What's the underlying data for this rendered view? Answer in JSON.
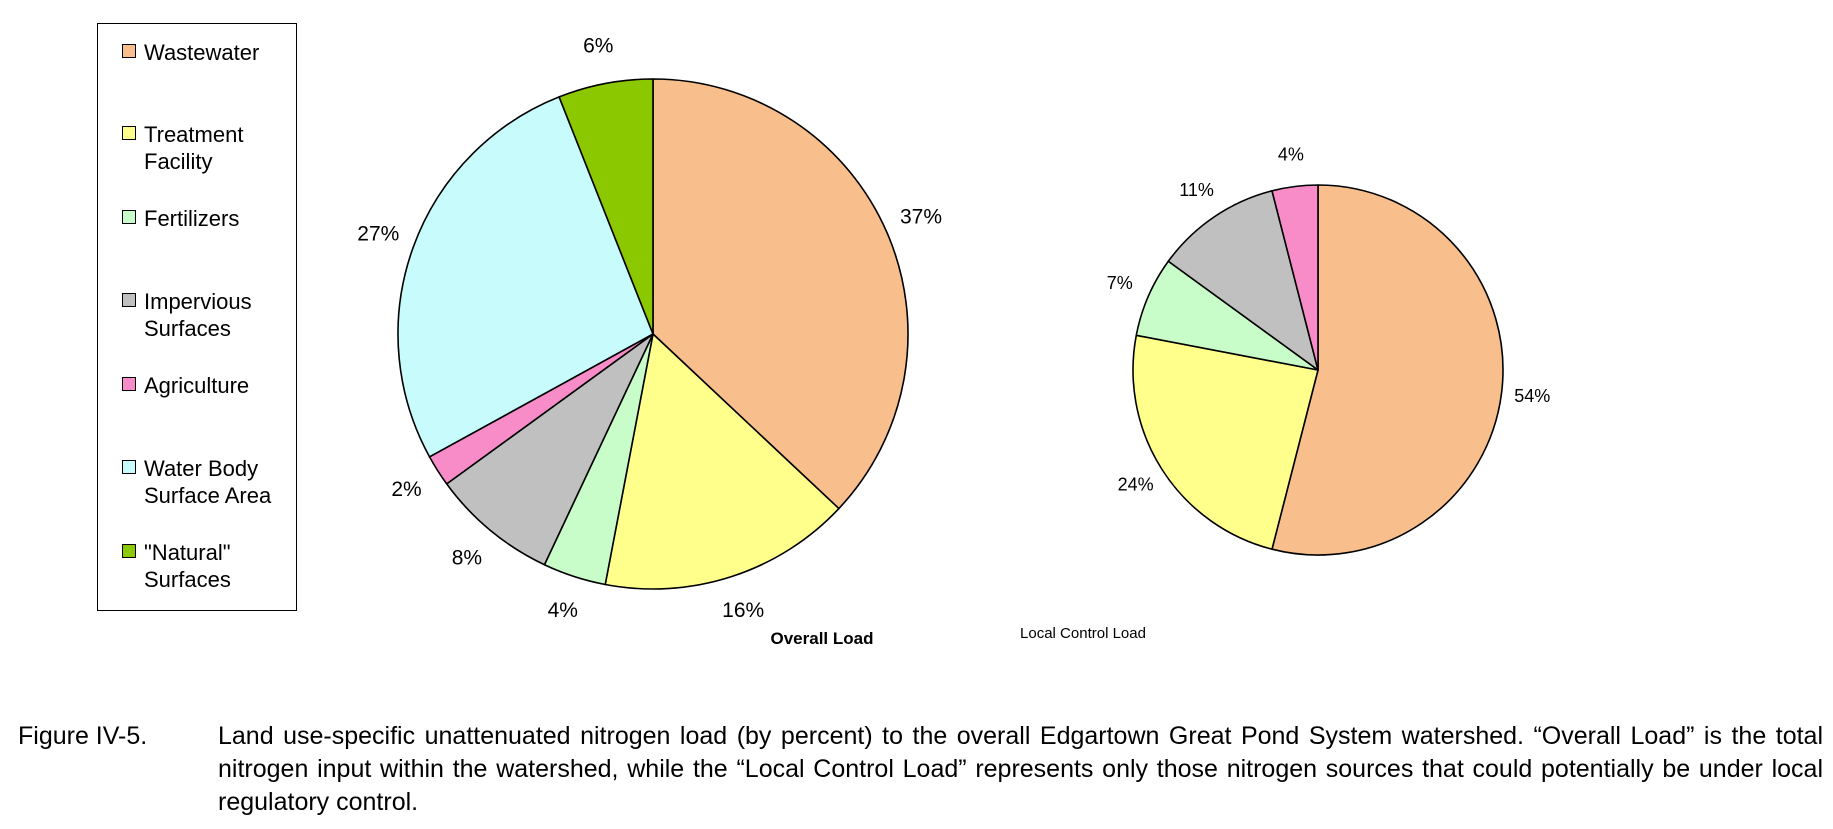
{
  "chart_data": [
    {
      "type": "pie",
      "title": "Overall Load",
      "categories": [
        "Wastewater",
        "Treatment Facility",
        "Fertilizers",
        "Impervious Surfaces",
        "Agriculture",
        "Water Body Surface Area",
        "\"Natural\" Surfaces"
      ],
      "values": [
        37,
        16,
        4,
        8,
        2,
        27,
        6
      ],
      "labels": [
        "37%",
        "16%",
        "4%",
        "8%",
        "2%",
        "27%",
        "6%"
      ],
      "colors": [
        "#F8BF8C",
        "#FFFF8C",
        "#C8FCC8",
        "#C0C0C0",
        "#F78CC8",
        "#C8FCFC",
        "#8CC800"
      ]
    },
    {
      "type": "pie",
      "title": "Local Control Load",
      "categories": [
        "Wastewater",
        "Treatment Facility",
        "Fertilizers",
        "Impervious Surfaces",
        "Agriculture"
      ],
      "values": [
        54,
        24,
        7,
        11,
        4
      ],
      "labels": [
        "54%",
        "24%",
        "7%",
        "11%",
        "4%"
      ],
      "colors": [
        "#F8BF8C",
        "#FFFF8C",
        "#C8FCC8",
        "#C0C0C0",
        "#F78CC8"
      ]
    }
  ],
  "legend": {
    "items": [
      {
        "label": "Wastewater",
        "color": "#F8BF8C"
      },
      {
        "label": "Treatment Facility",
        "color": "#FFFF8C"
      },
      {
        "label": "Fertilizers",
        "color": "#C8FCC8"
      },
      {
        "label": "Impervious Surfaces",
        "color": "#C0C0C0"
      },
      {
        "label": "Agriculture",
        "color": "#F78CC8"
      },
      {
        "label": "Water Body Surface Area",
        "color": "#C8FCFC"
      },
      {
        "label": "\"Natural\" Surfaces",
        "color": "#8CC800"
      }
    ]
  },
  "caption": {
    "number": "Figure IV-5.",
    "text": "Land use-specific unattenuated nitrogen load (by percent) to the overall Edgartown Great Pond System watershed.  “Overall Load” is the total nitrogen input within the watershed, while the “Local Control Load” represents only those nitrogen sources that could potentially be under local regulatory control."
  }
}
